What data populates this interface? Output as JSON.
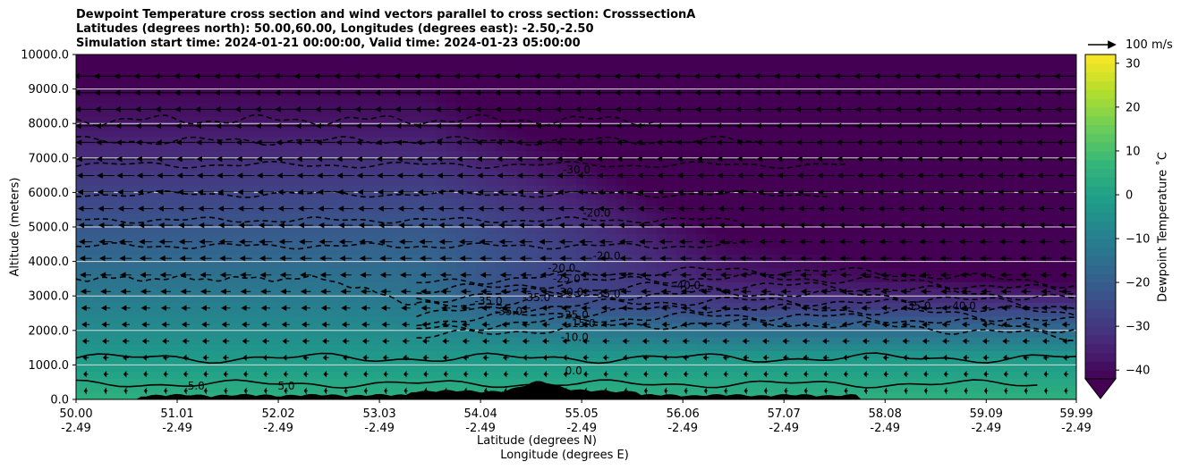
{
  "title_lines": [
    "Dewpoint Temperature cross section and wind vectors parallel to cross section: CrosssectionA",
    "Latitudes (degrees north): 50.00,60.00, Longitudes (degrees east): -2.50,-2.50",
    "Simulation start time: 2024-01-21 00:00:00, Valid time: 2024-01-23 05:00:00"
  ],
  "chart_data": {
    "type": "heatmap",
    "ylabel": "Altitude (meters)",
    "xlabel": "Latitude (degrees N)",
    "xlabel2": "Longitude (degrees E)",
    "y_ticks": [
      "0.0",
      "1000.0",
      "2000.0",
      "3000.0",
      "4000.0",
      "5000.0",
      "6000.0",
      "7000.0",
      "8000.0",
      "9000.0",
      "10000.0"
    ],
    "ylim": [
      0,
      10000
    ],
    "x_ticks": [
      {
        "lat": "50.00",
        "lon": "-2.49"
      },
      {
        "lat": "51.01",
        "lon": "-2.49"
      },
      {
        "lat": "52.02",
        "lon": "-2.49"
      },
      {
        "lat": "53.03",
        "lon": "-2.49"
      },
      {
        "lat": "54.04",
        "lon": "-2.49"
      },
      {
        "lat": "55.05",
        "lon": "-2.49"
      },
      {
        "lat": "56.06",
        "lon": "-2.49"
      },
      {
        "lat": "57.07",
        "lon": "-2.49"
      },
      {
        "lat": "58.08",
        "lon": "-2.49"
      },
      {
        "lat": "59.09",
        "lon": "-2.49"
      },
      {
        "lat": "59.99",
        "lon": "-2.49"
      }
    ],
    "xlim": [
      50.0,
      59.99
    ],
    "grid": "horizontal",
    "colorbar": {
      "label": "Dewpoint Temperature $^\\circ$C",
      "label_display": "Dewpoint Temperature ˚C",
      "min": -42,
      "max": 32,
      "ticks": [
        "30",
        "20",
        "10",
        "0",
        "−10",
        "−20",
        "−30",
        "−40"
      ],
      "tick_values": [
        30,
        20,
        10,
        0,
        -10,
        -20,
        -30,
        -40
      ],
      "colormap": "viridis",
      "extend": "min"
    },
    "quiver_key": "100 m/s",
    "contour_labels": [
      {
        "text": "-30.0",
        "lat": 55.0,
        "alt": 6550
      },
      {
        "text": "-20.0",
        "lat": 55.2,
        "alt": 5300
      },
      {
        "text": "-20.0",
        "lat": 54.85,
        "alt": 3700
      },
      {
        "text": "-20.0",
        "lat": 55.3,
        "alt": 4050
      },
      {
        "text": "-25.0",
        "lat": 54.9,
        "alt": 3400
      },
      {
        "text": "-30.0",
        "lat": 54.93,
        "alt": 3000
      },
      {
        "text": "-35.0",
        "lat": 54.12,
        "alt": 2750
      },
      {
        "text": "-35.0",
        "lat": 54.32,
        "alt": 2450
      },
      {
        "text": "-35.0",
        "lat": 54.6,
        "alt": 2850
      },
      {
        "text": "-25.0",
        "lat": 54.98,
        "alt": 2350
      },
      {
        "text": "-35.0",
        "lat": 55.3,
        "alt": 2950
      },
      {
        "text": "-15.0",
        "lat": 55.05,
        "alt": 2100
      },
      {
        "text": "-10.0",
        "lat": 54.98,
        "alt": 1700
      },
      {
        "text": "0.0",
        "lat": 54.97,
        "alt": 720
      },
      {
        "text": "5.0",
        "lat": 51.2,
        "alt": 280
      },
      {
        "text": "5.0",
        "lat": 52.1,
        "alt": 280
      },
      {
        "text": "-40.0",
        "lat": 56.1,
        "alt": 3200
      },
      {
        "text": "-35.0",
        "lat": 58.4,
        "alt": 2600
      },
      {
        "text": "-40.0",
        "lat": 58.85,
        "alt": 2600
      }
    ],
    "colors": {
      "viridis": [
        "#440154",
        "#482878",
        "#3e4989",
        "#31688e",
        "#26828e",
        "#1f9e89",
        "#35b779",
        "#6ece58",
        "#b5de2b",
        "#fde725"
      ],
      "contour": "#000000",
      "grid": "#d9d9d9"
    }
  }
}
